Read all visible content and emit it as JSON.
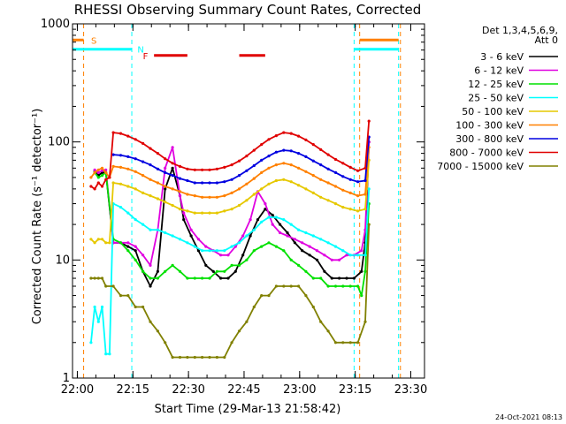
{
  "chart_data": {
    "type": "line",
    "title": "RHESSI Observing Summary Count Rates, Corrected",
    "xlabel": "Start Time (29-Mar-13 21:58:42)",
    "ylabel": "Corrected Count Rate (s⁻¹ detector⁻¹)",
    "x_unit": "minutes after 21:58:42 (start time)",
    "xlim": [
      0,
      95
    ],
    "ylim": [
      1,
      1000
    ],
    "y_scale": "log",
    "x_ticks": [
      "22:00",
      "22:15",
      "22:30",
      "22:45",
      "23:00",
      "23:15",
      "23:30"
    ],
    "x_tick_values": [
      1.3,
      16.3,
      31.3,
      46.3,
      61.3,
      76.3,
      91.3
    ],
    "y_ticks": [
      "1",
      "10",
      "100",
      "1000"
    ],
    "y_tick_values": [
      1,
      10,
      100,
      1000
    ],
    "legend_header": [
      "Det 1,3,4,5,6,9,",
      "Att 0"
    ],
    "legend_position": "right, outside plot",
    "grid": false,
    "series": [
      {
        "name": "3 - 6 keV",
        "color": "#000000",
        "x": [
          6,
          7,
          8,
          9,
          11,
          13,
          15,
          17,
          19,
          21,
          23,
          25,
          27,
          29,
          30,
          32,
          34,
          36,
          38,
          40,
          42,
          44,
          46,
          48,
          50,
          52,
          54,
          56,
          58,
          60,
          62,
          64,
          66,
          68,
          70,
          72,
          74,
          76,
          78,
          79,
          80
        ],
        "y": [
          56,
          52,
          55,
          55,
          14,
          14,
          13,
          12,
          8,
          6,
          8,
          40,
          60,
          35,
          22,
          16,
          12,
          9,
          8,
          7,
          7,
          8,
          11,
          16,
          22,
          27,
          24,
          20,
          17,
          14,
          12,
          11,
          10,
          8,
          7,
          7,
          7,
          7,
          8,
          14,
          100
        ]
      },
      {
        "name": "6 - 12 keV",
        "color": "#e000e0",
        "x": [
          6,
          7,
          8,
          9,
          11,
          13,
          15,
          17,
          19,
          21,
          23,
          25,
          27,
          29,
          30,
          32,
          34,
          36,
          38,
          40,
          42,
          44,
          46,
          48,
          50,
          52,
          54,
          56,
          58,
          60,
          62,
          64,
          66,
          68,
          70,
          72,
          74,
          76,
          78,
          79,
          80
        ],
        "y": [
          58,
          55,
          57,
          58,
          14,
          14,
          14,
          13,
          11,
          9,
          18,
          60,
          90,
          35,
          25,
          18,
          15,
          13,
          12,
          11,
          11,
          13,
          16,
          22,
          38,
          30,
          20,
          17,
          16,
          15,
          14,
          13,
          12,
          11,
          10,
          10,
          11,
          11,
          12,
          18,
          100
        ]
      },
      {
        "name": "12 - 25 keV",
        "color": "#00e000",
        "x": [
          6,
          7,
          8,
          9,
          11,
          13,
          15,
          17,
          19,
          21,
          23,
          25,
          27,
          29,
          31,
          33,
          35,
          37,
          39,
          41,
          43,
          45,
          47,
          49,
          51,
          53,
          55,
          57,
          59,
          61,
          63,
          65,
          67,
          69,
          71,
          73,
          75,
          77,
          78,
          79,
          80
        ],
        "y": [
          55,
          50,
          52,
          55,
          15,
          14,
          12,
          10,
          8,
          7,
          7,
          8,
          9,
          8,
          7,
          7,
          7,
          7,
          8,
          8,
          9,
          9,
          10,
          12,
          13,
          14,
          13,
          12,
          10,
          9,
          8,
          7,
          7,
          6,
          6,
          6,
          6,
          6,
          5,
          8,
          30
        ]
      },
      {
        "name": "25 - 50 keV",
        "color": "#00ffff",
        "x": [
          5,
          6,
          7,
          8,
          9,
          10,
          11,
          13,
          15,
          17,
          19,
          21,
          23,
          25,
          27,
          29,
          31,
          33,
          35,
          37,
          39,
          41,
          43,
          45,
          47,
          49,
          51,
          53,
          55,
          57,
          59,
          61,
          63,
          65,
          67,
          69,
          71,
          73,
          75,
          77,
          79,
          80
        ],
        "y": [
          2,
          4,
          3,
          4,
          1.6,
          1.6,
          30,
          28,
          25,
          22,
          20,
          18,
          18,
          17,
          16,
          15,
          14,
          13,
          12,
          12,
          12,
          12,
          13,
          14,
          16,
          18,
          21,
          23,
          23,
          22,
          20,
          18,
          17,
          16,
          15,
          14,
          13,
          12,
          11,
          11,
          11,
          40
        ]
      },
      {
        "name": "50 - 100 keV",
        "color": "#e6c800",
        "x": [
          5,
          6,
          7,
          8,
          9,
          10,
          11,
          13,
          15,
          17,
          19,
          21,
          23,
          25,
          27,
          29,
          31,
          33,
          35,
          37,
          39,
          41,
          43,
          45,
          47,
          49,
          51,
          53,
          55,
          57,
          59,
          61,
          63,
          65,
          67,
          69,
          71,
          73,
          75,
          77,
          79,
          80
        ],
        "y": [
          15,
          14,
          15,
          15,
          14,
          14,
          45,
          44,
          42,
          40,
          37,
          35,
          33,
          31,
          29,
          27,
          26,
          25,
          25,
          25,
          25,
          26,
          27,
          29,
          32,
          36,
          40,
          44,
          47,
          48,
          46,
          43,
          40,
          37,
          34,
          32,
          30,
          28,
          27,
          26,
          27,
          70
        ]
      },
      {
        "name": "100 - 300 keV",
        "color": "#ff8000",
        "x": [
          5,
          6,
          7,
          8,
          9,
          10,
          11,
          13,
          15,
          17,
          19,
          21,
          23,
          25,
          27,
          29,
          31,
          33,
          35,
          37,
          39,
          41,
          43,
          45,
          47,
          49,
          51,
          53,
          55,
          57,
          59,
          61,
          63,
          65,
          67,
          69,
          71,
          73,
          75,
          77,
          79,
          80
        ],
        "y": [
          50,
          55,
          58,
          60,
          55,
          50,
          62,
          61,
          59,
          56,
          52,
          48,
          45,
          42,
          40,
          38,
          36,
          35,
          34,
          34,
          34,
          35,
          37,
          40,
          44,
          49,
          55,
          60,
          64,
          66,
          64,
          60,
          56,
          52,
          48,
          45,
          42,
          39,
          37,
          35,
          36,
          90
        ]
      },
      {
        "name": "300 - 800 keV",
        "color": "#0000e0",
        "x": [
          11,
          13,
          15,
          17,
          19,
          21,
          23,
          25,
          27,
          29,
          31,
          33,
          35,
          37,
          39,
          41,
          43,
          45,
          47,
          49,
          51,
          53,
          55,
          57,
          59,
          61,
          63,
          65,
          67,
          69,
          71,
          73,
          75,
          77,
          79,
          80
        ],
        "y": [
          78,
          77,
          75,
          72,
          68,
          64,
          59,
          55,
          52,
          49,
          47,
          45,
          45,
          45,
          45,
          46,
          48,
          52,
          57,
          63,
          70,
          76,
          82,
          85,
          84,
          80,
          75,
          69,
          64,
          59,
          55,
          51,
          48,
          46,
          47,
          110
        ]
      },
      {
        "name": "800 - 7000 keV",
        "color": "#e00000",
        "x": [
          5,
          6,
          7,
          8,
          9,
          10,
          11,
          13,
          15,
          17,
          19,
          21,
          23,
          25,
          27,
          29,
          31,
          33,
          35,
          37,
          39,
          41,
          43,
          45,
          47,
          49,
          51,
          53,
          55,
          57,
          59,
          61,
          63,
          65,
          67,
          69,
          71,
          73,
          75,
          77,
          79,
          80
        ],
        "y": [
          42,
          40,
          45,
          42,
          48,
          50,
          120,
          118,
          112,
          105,
          97,
          88,
          80,
          72,
          66,
          62,
          59,
          58,
          58,
          58,
          59,
          61,
          64,
          69,
          76,
          85,
          95,
          105,
          113,
          120,
          118,
          112,
          104,
          95,
          86,
          78,
          71,
          66,
          61,
          57,
          60,
          150
        ]
      },
      {
        "name": "7000 - 15000 keV",
        "color": "#808000",
        "x": [
          5,
          6,
          7,
          8,
          9,
          11,
          13,
          15,
          17,
          19,
          21,
          23,
          25,
          27,
          29,
          31,
          33,
          35,
          37,
          39,
          41,
          43,
          45,
          47,
          49,
          51,
          53,
          55,
          57,
          59,
          61,
          63,
          65,
          67,
          69,
          71,
          73,
          75,
          77,
          79,
          80
        ],
        "y": [
          7,
          7,
          7,
          7,
          6,
          6,
          5,
          5,
          4,
          4,
          3,
          2.5,
          2,
          1.5,
          1.5,
          1.5,
          1.5,
          1.5,
          1.5,
          1.5,
          1.5,
          2,
          2.5,
          3,
          4,
          5,
          5,
          6,
          6,
          6,
          6,
          5,
          4,
          3,
          2.5,
          2,
          2,
          2,
          2,
          3,
          20
        ]
      }
    ],
    "annotations": [
      {
        "label": "S",
        "color": "#ff8000",
        "x_start": 0,
        "x_end": 3,
        "y": 730,
        "label_x": 5
      },
      {
        "label": "S",
        "color": "#ff8000",
        "x_start": 77.5,
        "x_end": 88,
        "y": 730,
        "label_x": null
      },
      {
        "label": "N",
        "color": "#00ffff",
        "x_start": 0,
        "x_end": 16,
        "y": 610,
        "label_x": 17.5
      },
      {
        "label": "N",
        "color": "#00ffff",
        "x_start": 76,
        "x_end": 88,
        "y": 610,
        "label_x": null
      },
      {
        "label": "F",
        "color": "#e00000",
        "x_start": 22,
        "x_end": 31,
        "y": 540,
        "label_x": 19
      },
      {
        "label": "",
        "color": "#e00000",
        "x_start": 45,
        "x_end": 52,
        "y": 540,
        "label_x": null
      }
    ],
    "vertical_markers": [
      {
        "color": "#ff8000",
        "x": 3
      },
      {
        "color": "#00ffff",
        "x": 16
      },
      {
        "color": "#00ffff",
        "x": 76
      },
      {
        "color": "#ff8000",
        "x": 77.5
      },
      {
        "color": "#00ffff",
        "x": 88
      },
      {
        "color": "#ff8000",
        "x": 88.5
      }
    ]
  },
  "timestamp": "24-Oct-2021 08:13"
}
